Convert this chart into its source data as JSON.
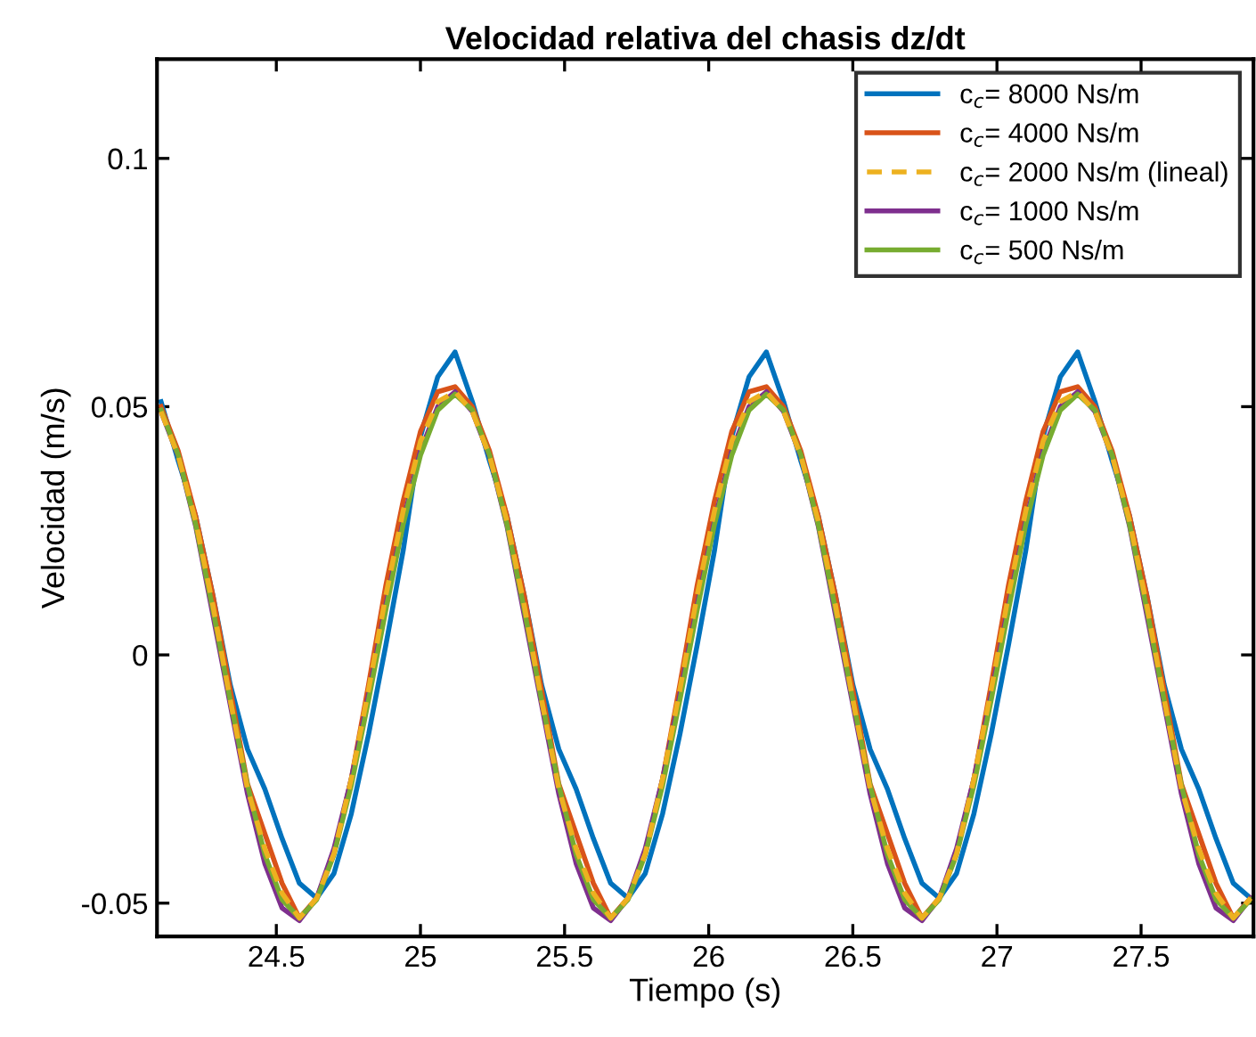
{
  "chart_data": {
    "type": "line",
    "title": "Velocidad relativa del chasis dz/dt",
    "xlabel": "Tiempo (s)",
    "ylabel": "Velocidad (m/s)",
    "xlim": [
      24.086,
      27.89
    ],
    "xticks": [
      24.5,
      25,
      25.5,
      26,
      26.5,
      27,
      27.5
    ],
    "ylim": [
      -0.0567,
      0.12
    ],
    "yticks": [
      -0.05,
      0,
      0.05,
      0.1
    ],
    "grid": false,
    "legend": "top right",
    "x": [
      24.1,
      24.16,
      24.22,
      24.28,
      24.34,
      24.4,
      24.46,
      24.52,
      24.58,
      24.64,
      24.7,
      24.76,
      24.82,
      24.88,
      24.94,
      25.0,
      25.06,
      25.12,
      25.18,
      25.24,
      25.3,
      25.36,
      25.42,
      25.48,
      25.54,
      25.6,
      25.66,
      25.72,
      25.78,
      25.84,
      25.9,
      25.96,
      26.02,
      26.08,
      26.14,
      26.2,
      26.26,
      26.32,
      26.38,
      26.44,
      26.5,
      26.56,
      26.62,
      26.68,
      26.74,
      26.8,
      26.86,
      26.92,
      26.98,
      27.04,
      27.1,
      27.16,
      27.22,
      27.28,
      27.34,
      27.4,
      27.46,
      27.52,
      27.58,
      27.64,
      27.7,
      27.76,
      27.82,
      27.88
    ],
    "series": [
      {
        "name": "c$_{c}$= 8000 Ns/m",
        "color": "#0072bd",
        "line_style": "solid",
        "values": [
          0.051,
          0.039,
          0.028,
          0.012,
          -0.006,
          -0.019,
          -0.027,
          -0.037,
          -0.046,
          -0.049,
          -0.044,
          -0.032,
          -0.016,
          0.002,
          0.021,
          0.044,
          0.056,
          0.061,
          0.051,
          0.039,
          0.028,
          0.012,
          -0.006,
          -0.019,
          -0.027,
          -0.037,
          -0.046,
          -0.049,
          -0.044,
          -0.032,
          -0.016,
          0.002,
          0.021,
          0.044,
          0.056,
          0.061,
          0.051,
          0.039,
          0.028,
          0.012,
          -0.006,
          -0.019,
          -0.027,
          -0.037,
          -0.046,
          -0.049,
          -0.044,
          -0.032,
          -0.016,
          0.002,
          0.021,
          0.044,
          0.056,
          0.061,
          0.051,
          0.039,
          0.028,
          0.012,
          -0.006,
          -0.019,
          -0.027,
          -0.037,
          -0.046,
          -0.049
        ]
      },
      {
        "name": "c$_{c}$= 4000 Ns/m",
        "color": "#d95319",
        "line_style": "solid",
        "values": [
          0.05,
          0.041,
          0.028,
          0.012,
          -0.007,
          -0.026,
          -0.036,
          -0.046,
          -0.053,
          -0.049,
          -0.04,
          -0.025,
          -0.006,
          0.014,
          0.031,
          0.045,
          0.053,
          0.054,
          0.05,
          0.041,
          0.028,
          0.012,
          -0.007,
          -0.026,
          -0.036,
          -0.046,
          -0.053,
          -0.049,
          -0.04,
          -0.025,
          -0.006,
          0.014,
          0.031,
          0.045,
          0.053,
          0.054,
          0.05,
          0.041,
          0.028,
          0.012,
          -0.007,
          -0.026,
          -0.036,
          -0.046,
          -0.053,
          -0.049,
          -0.04,
          -0.025,
          -0.006,
          0.014,
          0.031,
          0.045,
          0.053,
          0.054,
          0.05,
          0.041,
          0.028,
          0.012,
          -0.007,
          -0.026,
          -0.036,
          -0.046,
          -0.053,
          -0.049
        ]
      },
      {
        "name": "c$_{c}$= 2000 Ns/m (lineal)",
        "color": "#edb120",
        "line_style": "dashed",
        "values": [
          0.049,
          0.04,
          0.027,
          0.01,
          -0.009,
          -0.027,
          -0.039,
          -0.048,
          -0.053,
          -0.049,
          -0.04,
          -0.025,
          -0.007,
          0.012,
          0.029,
          0.043,
          0.051,
          0.053,
          0.049,
          0.04,
          0.027,
          0.01,
          -0.009,
          -0.027,
          -0.039,
          -0.048,
          -0.053,
          -0.049,
          -0.04,
          -0.025,
          -0.007,
          0.012,
          0.029,
          0.043,
          0.051,
          0.053,
          0.049,
          0.04,
          0.027,
          0.01,
          -0.009,
          -0.027,
          -0.039,
          -0.048,
          -0.053,
          -0.049,
          -0.04,
          -0.025,
          -0.007,
          0.012,
          0.029,
          0.043,
          0.051,
          0.053,
          0.049,
          0.04,
          0.027,
          0.01,
          -0.009,
          -0.027,
          -0.039,
          -0.048,
          -0.053,
          -0.049
        ]
      },
      {
        "name": "c$_{c}$= 1000 Ns/m",
        "color": "#7e2f8e",
        "line_style": "solid",
        "values": [
          0.049,
          0.04,
          0.026,
          0.008,
          -0.01,
          -0.028,
          -0.042,
          -0.051,
          -0.0535,
          -0.049,
          -0.039,
          -0.025,
          -0.008,
          0.01,
          0.027,
          0.041,
          0.05,
          0.053,
          0.049,
          0.04,
          0.026,
          0.008,
          -0.01,
          -0.028,
          -0.042,
          -0.051,
          -0.0535,
          -0.049,
          -0.039,
          -0.025,
          -0.008,
          0.01,
          0.027,
          0.041,
          0.05,
          0.053,
          0.049,
          0.04,
          0.026,
          0.008,
          -0.01,
          -0.028,
          -0.042,
          -0.051,
          -0.0535,
          -0.049,
          -0.039,
          -0.025,
          -0.008,
          0.01,
          0.027,
          0.041,
          0.05,
          0.053,
          0.049,
          0.04,
          0.026,
          0.008,
          -0.01,
          -0.028,
          -0.042,
          -0.051,
          -0.0535,
          -0.049
        ]
      },
      {
        "name": "c$_{c}$= 500 Ns/m",
        "color": "#77ac30",
        "line_style": "solid",
        "values": [
          0.0493,
          0.0402,
          0.0263,
          0.0091,
          -0.0091,
          -0.0263,
          -0.0402,
          -0.0493,
          -0.053,
          -0.0493,
          -0.0402,
          -0.0263,
          -0.0091,
          0.0091,
          0.0263,
          0.0402,
          0.0493,
          0.0525,
          0.0493,
          0.0402,
          0.0263,
          0.0091,
          -0.0091,
          -0.0263,
          -0.0402,
          -0.0493,
          -0.053,
          -0.0493,
          -0.0402,
          -0.0263,
          -0.0091,
          0.0091,
          0.0263,
          0.0402,
          0.0493,
          0.0525,
          0.0493,
          0.0402,
          0.0263,
          0.0091,
          -0.0091,
          -0.0263,
          -0.0402,
          -0.0493,
          -0.053,
          -0.0493,
          -0.0402,
          -0.0263,
          -0.0091,
          0.0091,
          0.0263,
          0.0402,
          0.0493,
          0.0525,
          0.0493,
          0.0402,
          0.0263,
          0.0091,
          -0.0091,
          -0.0263,
          -0.0402,
          -0.0493,
          -0.053,
          -0.0493
        ]
      }
    ]
  }
}
